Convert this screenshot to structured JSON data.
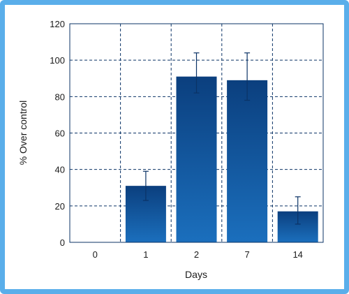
{
  "chart_data": {
    "type": "bar",
    "categories": [
      "0",
      "1",
      "2",
      "7",
      "14"
    ],
    "values": [
      0,
      31,
      91,
      89,
      17
    ],
    "error_low": [
      0,
      23,
      82,
      78,
      10
    ],
    "error_high": [
      0,
      39,
      104,
      104,
      25
    ],
    "ylim": [
      0,
      120
    ],
    "yticks": [
      "0",
      "20",
      "40",
      "60",
      "80",
      "100",
      "120"
    ],
    "xlabel": "Days",
    "ylabel": "% Over control",
    "grid": true,
    "colors": {
      "bar_top": "#0b3f7e",
      "bar_bottom": "#1b6fbd",
      "grid": "#0b3366",
      "frame": "#5aaeea"
    }
  }
}
